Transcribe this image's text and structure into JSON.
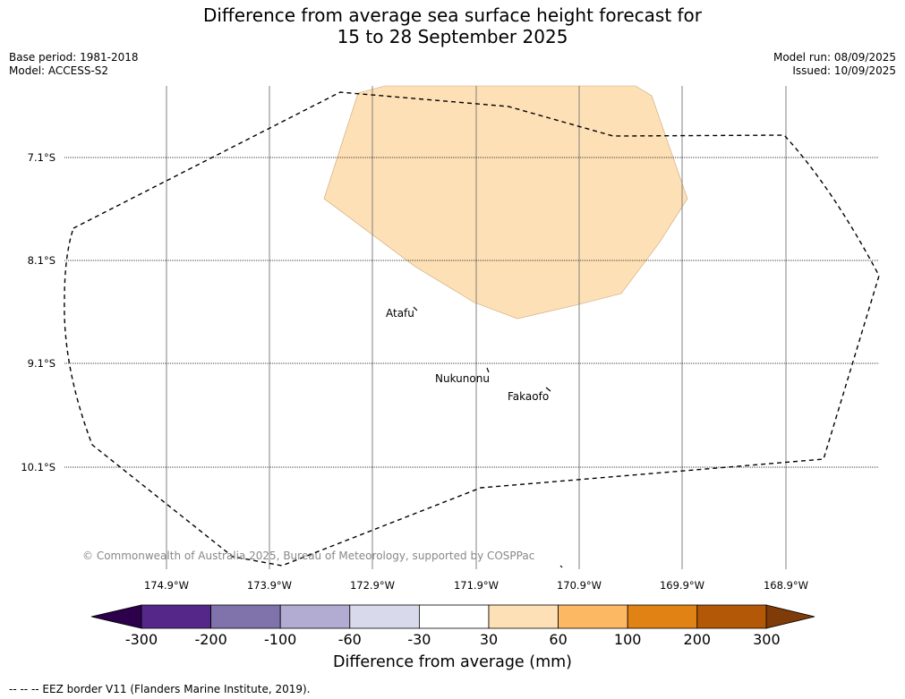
{
  "title": {
    "line1": "Difference from average sea surface height forecast for",
    "line2": "15 to 28 September 2025"
  },
  "meta": {
    "base_period": "Base period: 1981-2018",
    "model": "Model: ACCESS-S2",
    "model_run": "Model run: 08/09/2025",
    "issued": "Issued: 10/09/2025"
  },
  "latitudes": [
    "7.1°S",
    "8.1°S",
    "9.1°S",
    "10.1°S"
  ],
  "longitudes": [
    "174.9°W",
    "173.9°W",
    "172.9°W",
    "171.9°W",
    "170.9°W",
    "169.9°W",
    "168.9°W"
  ],
  "places": [
    "Atafu",
    "Nukunonu",
    "Fakaofo"
  ],
  "copyright": "© Commonwealth of Australia 2025, Bureau of Meteorology, supported by COSPPac",
  "colorbar": {
    "ticks": [
      "-300",
      "-200",
      "-100",
      "-60",
      "-30",
      "30",
      "60",
      "100",
      "200",
      "300"
    ],
    "colors": [
      "#2d004b",
      "#542788",
      "#8073ac",
      "#b2abd2",
      "#d8daeb",
      "#ffffff",
      "#fee0b6",
      "#fdb863",
      "#e08214",
      "#b35806",
      "#7f3b08"
    ],
    "label": "Difference from average (mm)"
  },
  "anomaly_fill": "#fee0b6",
  "legend_note": "--  --  -- EEZ border V11 (Flanders Marine Institute, 2019)."
}
